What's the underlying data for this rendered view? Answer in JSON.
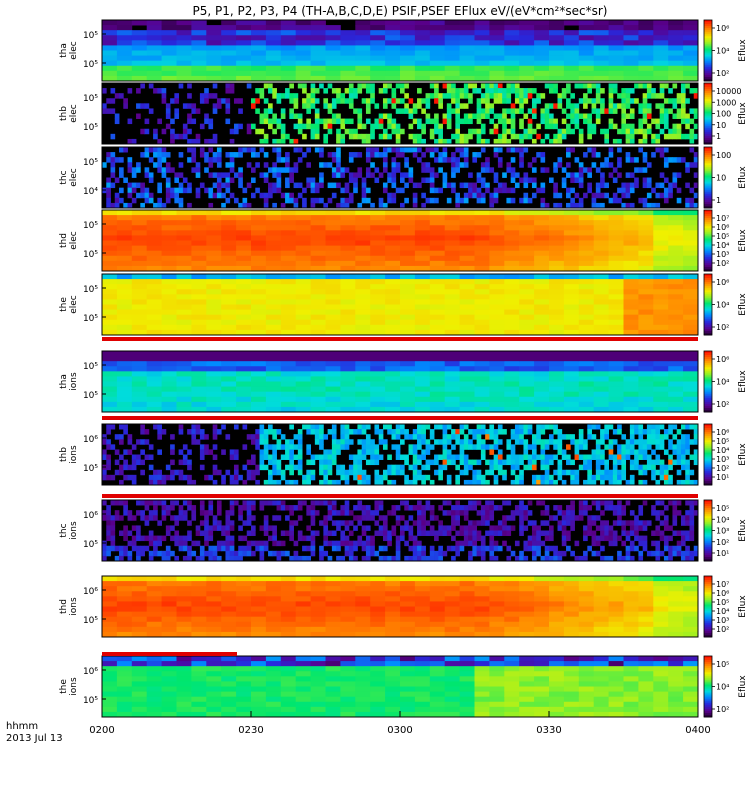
{
  "chart_data": {
    "type": "heatmap",
    "title": "P5, P1, P2, P3, P4 (TH-A,B,C,D,E) PSIF,PSEF EFlux eV/(eV*cm²*sec*sr)",
    "x_axis": {
      "ticks": [
        "0200",
        "0230",
        "0300",
        "0330",
        "0400"
      ],
      "label_lines": [
        "hhmm",
        "2013 Jul 13"
      ],
      "range": [
        "02:00",
        "04:00"
      ]
    },
    "colorbar_label": "Eflux",
    "panels": [
      {
        "id": "tha_elec",
        "name": [
          "tha",
          "elec"
        ],
        "y_ticks": [
          "10⁵",
          "10⁵"
        ],
        "cbar_ticks": [
          "10⁶",
          "10⁴",
          "10²"
        ],
        "pattern": "green_band_top_purple"
      },
      {
        "id": "thb_elec",
        "name": [
          "thb",
          "elec"
        ],
        "y_ticks": [
          "10⁵",
          "10⁵"
        ],
        "cbar_ticks": [
          "10000",
          "1000",
          "100",
          "10",
          "1"
        ],
        "pattern": "sparse_noise_switch"
      },
      {
        "id": "thc_elec",
        "name": [
          "thc",
          "elec"
        ],
        "y_ticks": [
          "10⁵",
          "10⁴"
        ],
        "cbar_ticks": [
          "100",
          "10",
          "1"
        ],
        "pattern": "sparse_noise"
      },
      {
        "id": "thd_elec",
        "name": [
          "thd",
          "elec"
        ],
        "y_ticks": [
          "10⁵",
          "10⁵"
        ],
        "cbar_ticks": [
          "10⁷",
          "10⁶",
          "10⁵",
          "10⁴",
          "10³",
          "10²"
        ],
        "pattern": "hot_orange"
      },
      {
        "id": "the_elec",
        "name": [
          "the",
          "elec"
        ],
        "y_ticks": [
          "10⁵",
          "10⁵"
        ],
        "cbar_ticks": [
          "10⁶",
          "10⁴",
          "10²"
        ],
        "pattern": "yellow_green"
      },
      {
        "id": "tha_ions",
        "name": [
          "tha",
          "ions"
        ],
        "y_ticks": [
          "10⁵",
          "10⁵"
        ],
        "cbar_ticks": [
          "10⁶",
          "10⁴",
          "10²"
        ],
        "pattern": "blue_cyan"
      },
      {
        "id": "thb_ions",
        "name": [
          "thb",
          "ions"
        ],
        "y_ticks": [
          "10⁶",
          "10⁵"
        ],
        "cbar_ticks": [
          "10⁶",
          "10⁵",
          "10⁴",
          "10³",
          "10²",
          "10¹"
        ],
        "pattern": "sparse_noise_switch_cyan"
      },
      {
        "id": "thc_ions",
        "name": [
          "thc",
          "ions"
        ],
        "y_ticks": [
          "10⁶",
          "10⁵"
        ],
        "cbar_ticks": [
          "10⁵",
          "10⁴",
          "10³",
          "10²",
          "10¹"
        ],
        "pattern": "purple_dark"
      },
      {
        "id": "thd_ions",
        "name": [
          "thd",
          "ions"
        ],
        "y_ticks": [
          "10⁶",
          "10⁵"
        ],
        "cbar_ticks": [
          "10⁷",
          "10⁶",
          "10⁵",
          "10⁴",
          "10³",
          "10²"
        ],
        "pattern": "hot_orange"
      },
      {
        "id": "the_ions",
        "name": [
          "the",
          "ions"
        ],
        "y_ticks": [
          "10⁶",
          "10⁵"
        ],
        "cbar_ticks": [
          "10⁵",
          "10⁴",
          "10²"
        ],
        "pattern": "green_yellow"
      }
    ]
  }
}
